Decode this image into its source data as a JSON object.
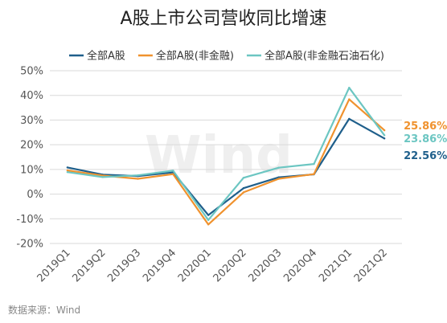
{
  "chart_data": {
    "type": "line",
    "title": "A股上市公司营收同比增速",
    "categories": [
      "2019Q1",
      "2019Q2",
      "2019Q3",
      "2019Q4",
      "2020Q1",
      "2020Q2",
      "2020Q3",
      "2020Q4",
      "2021Q1",
      "2021Q2"
    ],
    "series": [
      {
        "name": "全部A股",
        "color": "#1f5f8b",
        "values": [
          10.8,
          7.9,
          7.3,
          8.8,
          -8.5,
          2.4,
          6.8,
          8.0,
          30.5,
          22.56
        ],
        "end_label": "22.56%"
      },
      {
        "name": "全部A股(非金融)",
        "color": "#f0922e",
        "values": [
          9.6,
          7.5,
          6.2,
          8.1,
          -12.3,
          0.7,
          6.2,
          8.1,
          38.4,
          25.86
        ],
        "end_label": "25.86%"
      },
      {
        "name": "全部A股(非金融石油石化)",
        "color": "#6cc6c2",
        "values": [
          8.9,
          6.9,
          7.6,
          9.5,
          -10.5,
          6.6,
          10.7,
          12.2,
          43.1,
          23.86
        ],
        "end_label": "23.86%"
      }
    ],
    "y_ticks": [
      "50%",
      "40%",
      "30%",
      "20%",
      "10%",
      "0%",
      "-10%",
      "-20%"
    ],
    "y_tick_values": [
      50,
      40,
      30,
      20,
      10,
      0,
      -10,
      -20
    ],
    "ylim": [
      -20,
      50
    ],
    "grid": true,
    "legend_position": "top",
    "watermark": "Wind",
    "source": "数据来源：Wind"
  }
}
